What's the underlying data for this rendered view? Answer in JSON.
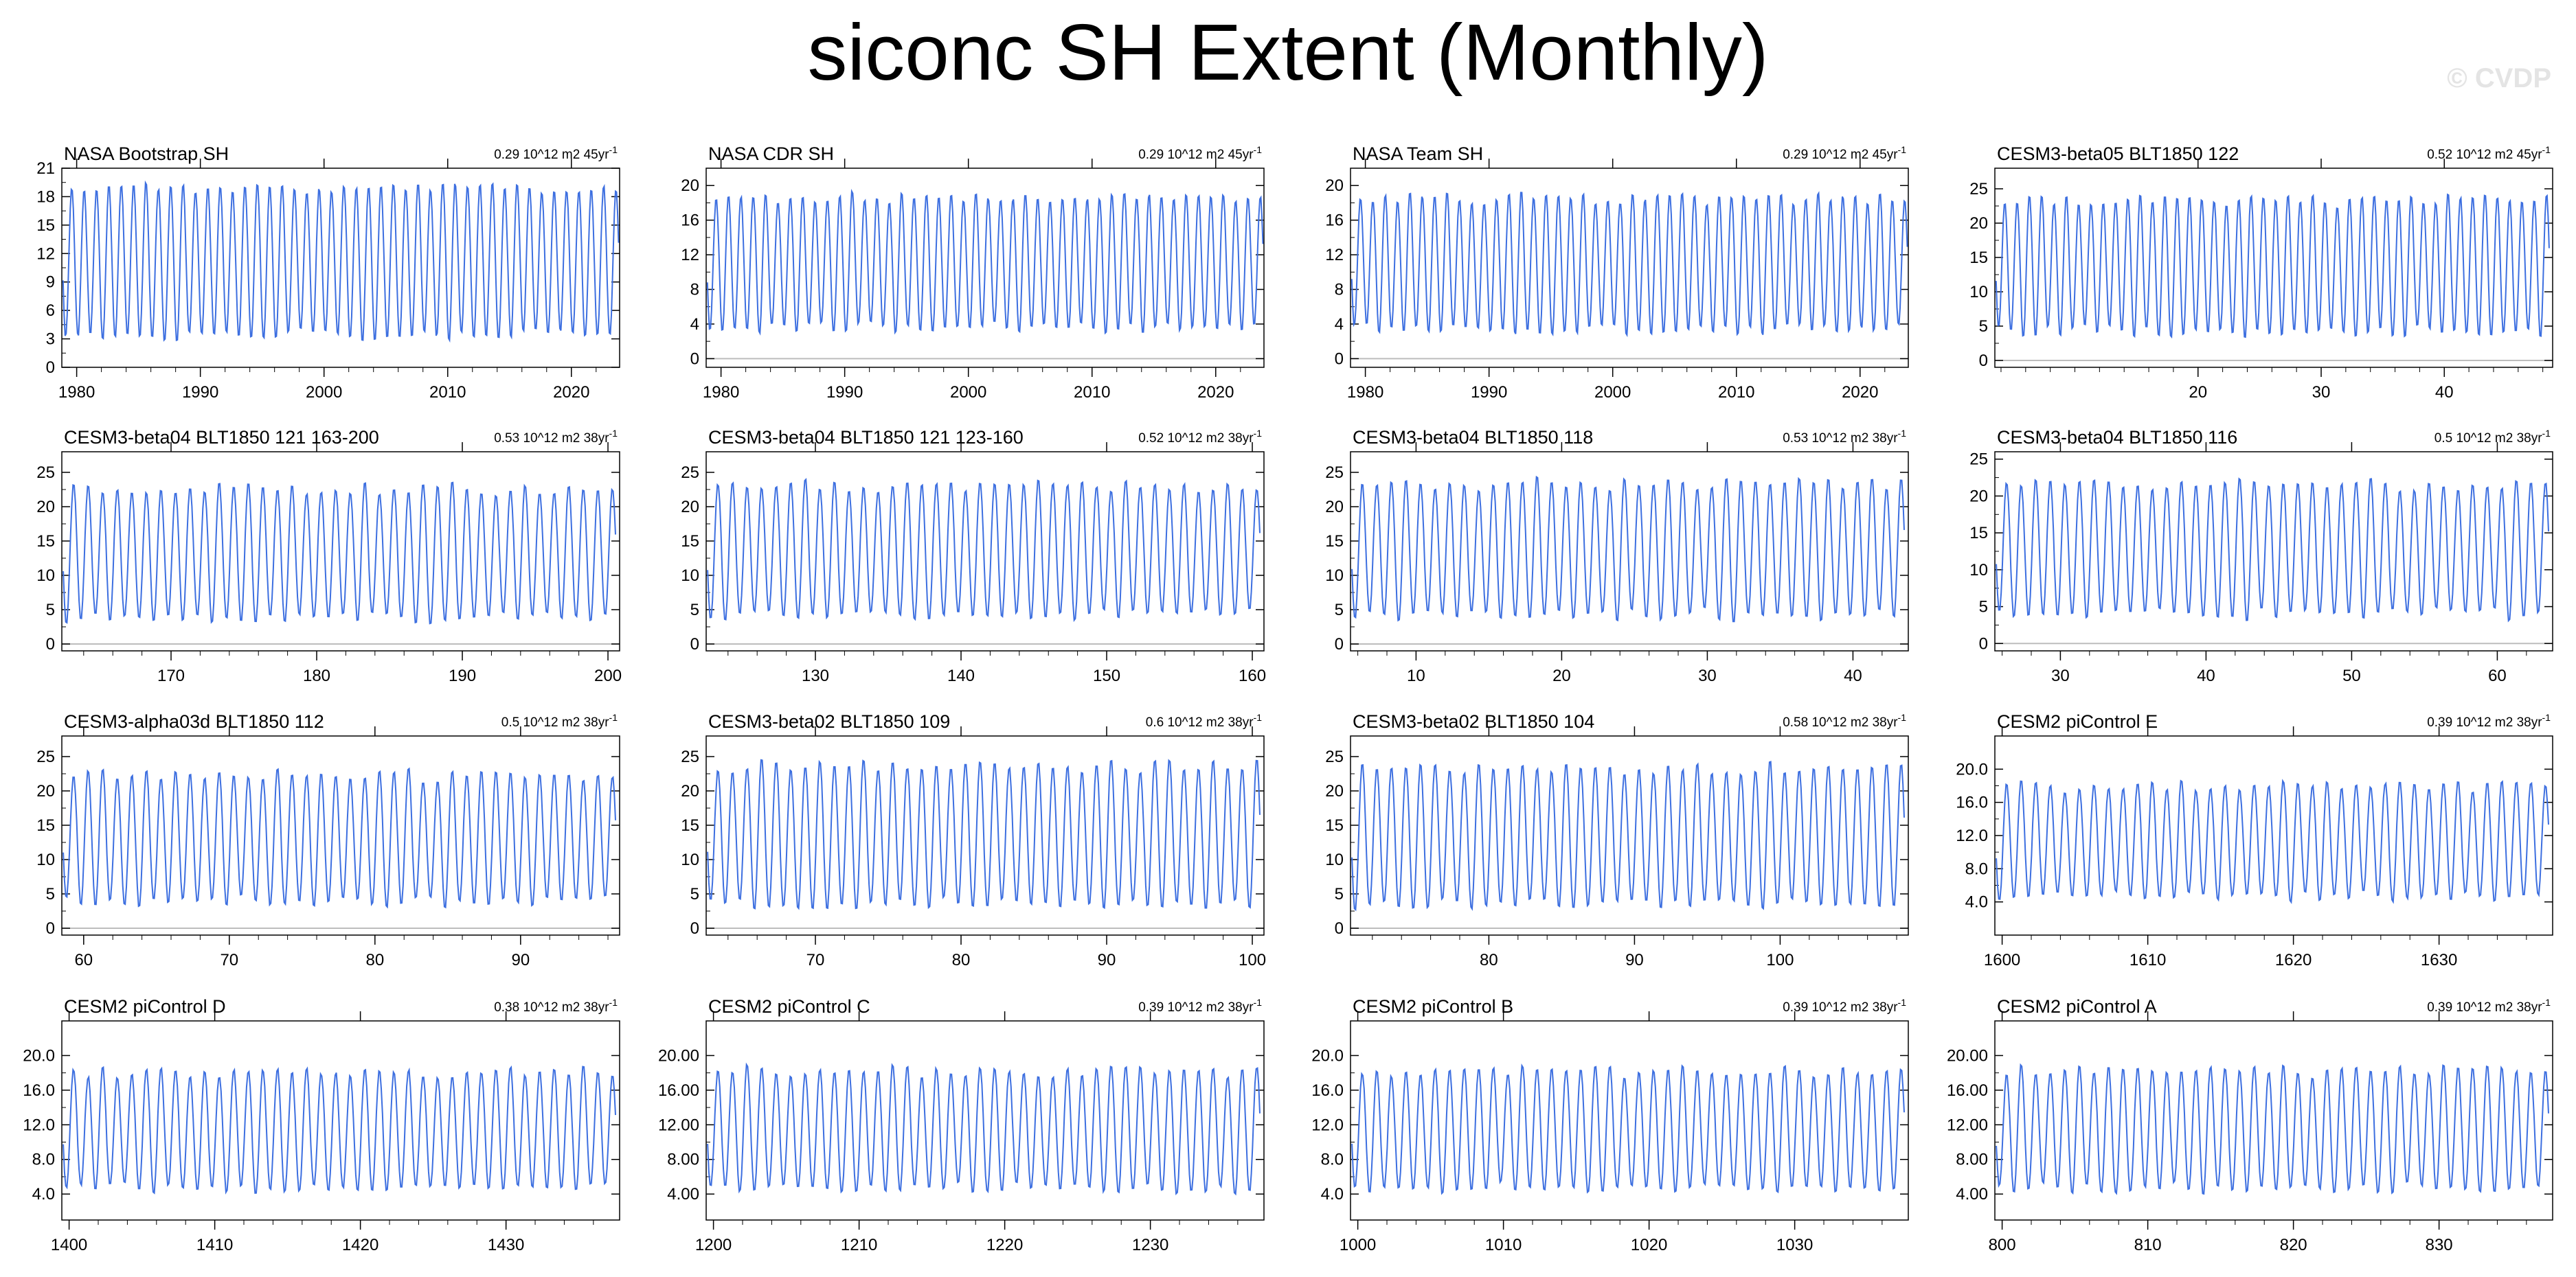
{
  "title": "siconc SH Extent (Monthly)",
  "watermark": "© CVDP",
  "colors": {
    "series": "#3d6fe0",
    "zero_line": "#bdbdbd",
    "frame": "#000000"
  },
  "chart_data": [
    {
      "type": "line",
      "title": "NASA Bootstrap SH",
      "stat": "0.29 10^12 m2 45yr",
      "stat_sup": "-1",
      "xlim": [
        1978.8,
        2023.9
      ],
      "xticks": [
        1980,
        1990,
        2000,
        2010,
        2020
      ],
      "ylim": [
        0,
        21
      ],
      "yticks": [
        0,
        3,
        6,
        9,
        12,
        15,
        18,
        21
      ],
      "ydec": 0,
      "min": 3.3,
      "max": 19.0,
      "ampvar": 0.6,
      "seed": 1
    },
    {
      "type": "line",
      "title": "NASA CDR SH",
      "stat": "0.29 10^12 m2 45yr",
      "stat_sup": "-1",
      "xlim": [
        1978.8,
        2023.9
      ],
      "xticks": [
        1980,
        1990,
        2000,
        2010,
        2020
      ],
      "ylim": [
        -1,
        22
      ],
      "yticks": [
        0,
        4,
        8,
        12,
        16,
        20
      ],
      "ydec": 0,
      "min": 3.3,
      "max": 18.8,
      "ampvar": 0.6,
      "seed": 2
    },
    {
      "type": "line",
      "title": "NASA Team SH",
      "stat": "0.29 10^12 m2 45yr",
      "stat_sup": "-1",
      "xlim": [
        1978.8,
        2023.9
      ],
      "xticks": [
        1980,
        1990,
        2000,
        2010,
        2020
      ],
      "ylim": [
        -1,
        22
      ],
      "yticks": [
        0,
        4,
        8,
        12,
        16,
        20
      ],
      "ydec": 0,
      "min": 3.2,
      "max": 18.7,
      "ampvar": 0.6,
      "seed": 3
    },
    {
      "type": "line",
      "title": "CESM3-beta05 BLT1850 122",
      "stat": "0.52 10^12 m2 45yr",
      "stat_sup": "-1",
      "xlim": [
        3.5,
        48.8
      ],
      "xticks": [
        20,
        30,
        40
      ],
      "ylim": [
        -1,
        28
      ],
      "yticks": [
        0,
        5,
        10,
        15,
        20,
        25
      ],
      "ydec": 0,
      "min": 4.0,
      "max": 23.5,
      "ampvar": 0.8,
      "seed": 4
    },
    {
      "type": "line",
      "title": "CESM3-beta04 BLT1850 121 163-200",
      "stat": "0.53 10^12 m2 38yr",
      "stat_sup": "-1",
      "xlim": [
        162.5,
        200.8
      ],
      "xticks": [
        170,
        180,
        190,
        200
      ],
      "ylim": [
        -1,
        28
      ],
      "yticks": [
        0,
        5,
        10,
        15,
        20,
        25
      ],
      "ydec": 0,
      "min": 3.5,
      "max": 22.8,
      "ampvar": 0.8,
      "seed": 5
    },
    {
      "type": "line",
      "title": "CESM3-beta04 BLT1850 121 123-160",
      "stat": "0.52 10^12 m2 38yr",
      "stat_sup": "-1",
      "xlim": [
        122.5,
        160.8
      ],
      "xticks": [
        130,
        140,
        150,
        160
      ],
      "ylim": [
        -1,
        28
      ],
      "yticks": [
        0,
        5,
        10,
        15,
        20,
        25
      ],
      "ydec": 0,
      "min": 4.0,
      "max": 23.2,
      "ampvar": 0.8,
      "seed": 6
    },
    {
      "type": "line",
      "title": "CESM3-beta04 BLT1850 118",
      "stat": "0.53 10^12 m2 38yr",
      "stat_sup": "-1",
      "xlim": [
        5.5,
        43.8
      ],
      "xticks": [
        10,
        20,
        30,
        40
      ],
      "ylim": [
        -1,
        28
      ],
      "yticks": [
        0,
        5,
        10,
        15,
        20,
        25
      ],
      "ydec": 0,
      "min": 4.0,
      "max": 23.6,
      "ampvar": 0.8,
      "seed": 7
    },
    {
      "type": "line",
      "title": "CESM3-beta04 BLT1850 116",
      "stat": "0.5 10^12 m2 38yr",
      "stat_sup": "-1",
      "xlim": [
        25.5,
        63.8
      ],
      "xticks": [
        30,
        40,
        50,
        60
      ],
      "ylim": [
        -1,
        26
      ],
      "yticks": [
        0,
        5,
        10,
        15,
        20,
        25
      ],
      "ydec": 0,
      "min": 3.8,
      "max": 21.8,
      "ampvar": 0.8,
      "seed": 8
    },
    {
      "type": "line",
      "title": "CESM3-alpha03d BLT1850 112",
      "stat": "0.5 10^12 m2 38yr",
      "stat_sup": "-1",
      "xlim": [
        58.5,
        96.8
      ],
      "xticks": [
        60,
        70,
        80,
        90
      ],
      "ylim": [
        -1,
        28
      ],
      "yticks": [
        0,
        5,
        10,
        15,
        20,
        25
      ],
      "ydec": 0,
      "min": 3.8,
      "max": 22.5,
      "ampvar": 0.8,
      "seed": 9
    },
    {
      "type": "line",
      "title": "CESM3-beta02 BLT1850 109",
      "stat": "0.6 10^12 m2 38yr",
      "stat_sup": "-1",
      "xlim": [
        62.5,
        100.8
      ],
      "xticks": [
        70,
        80,
        90,
        100
      ],
      "ylim": [
        -1,
        28
      ],
      "yticks": [
        0,
        5,
        10,
        15,
        20,
        25
      ],
      "ydec": 0,
      "min": 3.2,
      "max": 23.8,
      "ampvar": 0.8,
      "seed": 10
    },
    {
      "type": "line",
      "title": "CESM3-beta02 BLT1850 104",
      "stat": "0.58 10^12 m2 38yr",
      "stat_sup": "-1",
      "xlim": [
        70.5,
        108.8
      ],
      "xticks": [
        80,
        90,
        100
      ],
      "ylim": [
        -1,
        28
      ],
      "yticks": [
        0,
        5,
        10,
        15,
        20,
        25
      ],
      "ydec": 0,
      "min": 3.2,
      "max": 23.5,
      "ampvar": 0.8,
      "seed": 11
    },
    {
      "type": "line",
      "title": "CESM2 piControl E",
      "stat": "0.39 10^12 m2 38yr",
      "stat_sup": "-1",
      "xlim": [
        1599.5,
        1637.8
      ],
      "xticks": [
        1600,
        1610,
        1620,
        1630
      ],
      "ylim": [
        0,
        24
      ],
      "yticks": [
        4,
        8,
        12,
        16,
        20
      ],
      "ydec": 1,
      "min": 4.5,
      "max": 18.2,
      "ampvar": 0.6,
      "seed": 12
    },
    {
      "type": "line",
      "title": "CESM2 piControl D",
      "stat": "0.38 10^12 m2 38yr",
      "stat_sup": "-1",
      "xlim": [
        1399.5,
        1437.8
      ],
      "xticks": [
        1400,
        1410,
        1420,
        1430
      ],
      "ylim": [
        1,
        24
      ],
      "yticks": [
        4,
        8,
        12,
        16,
        20
      ],
      "ydec": 1,
      "min": 4.5,
      "max": 18.2,
      "ampvar": 0.6,
      "seed": 13
    },
    {
      "type": "line",
      "title": "CESM2 piControl C",
      "stat": "0.39 10^12 m2 38yr",
      "stat_sup": "-1",
      "xlim": [
        1199.5,
        1237.8
      ],
      "xticks": [
        1200,
        1210,
        1220,
        1230
      ],
      "ylim": [
        1,
        24
      ],
      "yticks": [
        4,
        8,
        12,
        16,
        20
      ],
      "ydec": 2,
      "min": 4.5,
      "max": 18.3,
      "ampvar": 0.6,
      "seed": 14
    },
    {
      "type": "line",
      "title": "CESM2 piControl B",
      "stat": "0.39 10^12 m2 38yr",
      "stat_sup": "-1",
      "xlim": [
        999.5,
        1037.8
      ],
      "xticks": [
        1000,
        1010,
        1020,
        1030
      ],
      "ylim": [
        1,
        24
      ],
      "yticks": [
        4,
        8,
        12,
        16,
        20
      ],
      "ydec": 1,
      "min": 4.5,
      "max": 18.3,
      "ampvar": 0.6,
      "seed": 15
    },
    {
      "type": "line",
      "title": "CESM2 piControl A",
      "stat": "0.39 10^12 m2 38yr",
      "stat_sup": "-1",
      "xlim": [
        799.5,
        837.8
      ],
      "xticks": [
        800,
        810,
        820,
        830
      ],
      "ylim": [
        1,
        24
      ],
      "yticks": [
        4,
        8,
        12,
        16,
        20
      ],
      "ydec": 2,
      "min": 4.5,
      "max": 18.4,
      "ampvar": 0.6,
      "seed": 16
    }
  ]
}
